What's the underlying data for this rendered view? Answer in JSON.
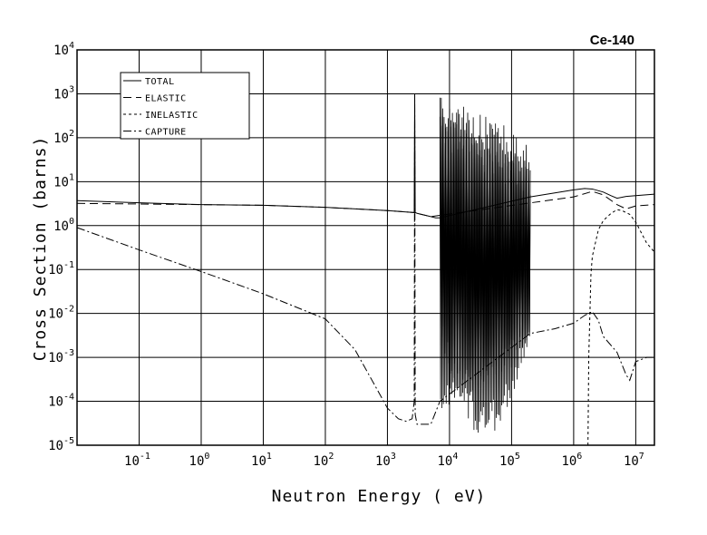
{
  "chart_data": {
    "type": "line",
    "title": "Ce-140",
    "xlabel": "Neutron Energy ( eV)",
    "ylabel": "Cross Section (barns)",
    "x_scale": "log",
    "y_scale": "log",
    "xlim": [
      0.01,
      20000000
    ],
    "ylim": [
      1e-05,
      10000
    ],
    "grid": true,
    "legend_position": "top-left",
    "x_ticks": [
      {
        "base": "10",
        "exp": "-1",
        "value": 0.1
      },
      {
        "base": "10",
        "exp": "0",
        "value": 1
      },
      {
        "base": "10",
        "exp": "1",
        "value": 10
      },
      {
        "base": "10",
        "exp": "2",
        "value": 100
      },
      {
        "base": "10",
        "exp": "3",
        "value": 1000
      },
      {
        "base": "10",
        "exp": "4",
        "value": 10000
      },
      {
        "base": "10",
        "exp": "5",
        "value": 100000
      },
      {
        "base": "10",
        "exp": "6",
        "value": 1000000
      },
      {
        "base": "10",
        "exp": "7",
        "value": 10000000
      }
    ],
    "y_ticks": [
      {
        "base": "10",
        "exp": "-5",
        "value": 1e-05
      },
      {
        "base": "10",
        "exp": "-4",
        "value": 0.0001
      },
      {
        "base": "10",
        "exp": "-3",
        "value": 0.001
      },
      {
        "base": "10",
        "exp": "-2",
        "value": 0.01
      },
      {
        "base": "10",
        "exp": "-1",
        "value": 0.1
      },
      {
        "base": "10",
        "exp": "0",
        "value": 1
      },
      {
        "base": "10",
        "exp": "1",
        "value": 10
      },
      {
        "base": "10",
        "exp": "2",
        "value": 100
      },
      {
        "base": "10",
        "exp": "3",
        "value": 1000
      },
      {
        "base": "10",
        "exp": "4",
        "value": 10000
      }
    ],
    "series": [
      {
        "name": "TOTAL",
        "dash": "solid",
        "resonance_region": [
          7000,
          200000
        ],
        "x": [
          0.01,
          0.1,
          1,
          10,
          100,
          1000,
          2500,
          2700,
          2750,
          2800,
          3000,
          5000,
          6000,
          7000,
          200000,
          1000000,
          1500000,
          2000000,
          3000000,
          4000000,
          5000000,
          7000000,
          10000000,
          20000000
        ],
        "y": [
          3.7,
          3.3,
          3.0,
          2.9,
          2.6,
          2.2,
          2.0,
          2.0,
          1000,
          2.0,
          1.9,
          1.6,
          1.5,
          1.5,
          4.5,
          6.5,
          7.0,
          6.8,
          5.8,
          4.8,
          4.2,
          4.6,
          4.8,
          5.2
        ]
      },
      {
        "name": "ELASTIC",
        "dash": "long-dash",
        "x": [
          0.01,
          0.1,
          1,
          10,
          100,
          1000,
          2500,
          3000,
          5000,
          1000000,
          2000000,
          3000000,
          5000000,
          7000000,
          10000000,
          20000000
        ],
        "y": [
          3.2,
          3.1,
          3.0,
          2.9,
          2.6,
          2.2,
          2.0,
          1.9,
          1.6,
          4.5,
          6.0,
          5.0,
          3.0,
          2.4,
          2.8,
          3.0
        ]
      },
      {
        "name": "INELASTIC",
        "dash": "short-dash",
        "x": [
          1700000,
          1750000,
          1900000,
          2000000,
          2500000,
          3000000,
          4000000,
          5000000,
          6000000,
          8000000,
          10000000,
          15000000,
          20000000
        ],
        "y": [
          1e-05,
          0.001,
          0.08,
          0.2,
          0.8,
          1.3,
          1.9,
          2.3,
          2.2,
          1.8,
          1.2,
          0.4,
          0.25
        ]
      },
      {
        "name": "CAPTURE",
        "dash": "dash-dot",
        "resonance_region": [
          7000,
          200000
        ],
        "x": [
          0.01,
          0.1,
          1,
          10,
          100,
          300,
          1000,
          1500,
          2000,
          2500,
          2700,
          2750,
          2800,
          3000,
          5000,
          7000,
          200000,
          500000,
          1000000,
          1500000,
          2000000,
          2500000,
          3000000,
          5000000,
          7000000,
          8000000,
          10000000,
          15000000,
          20000000
        ],
        "y": [
          0.9,
          0.28,
          0.09,
          0.028,
          0.0075,
          0.0015,
          7e-05,
          4e-05,
          3.5e-05,
          4e-05,
          0.0001,
          1000,
          5e-05,
          3e-05,
          3e-05,
          0.0001,
          0.0035,
          0.0045,
          0.006,
          0.009,
          0.011,
          0.007,
          0.003,
          0.0013,
          0.0004,
          0.0003,
          0.0008,
          0.001,
          0.001
        ]
      }
    ]
  }
}
